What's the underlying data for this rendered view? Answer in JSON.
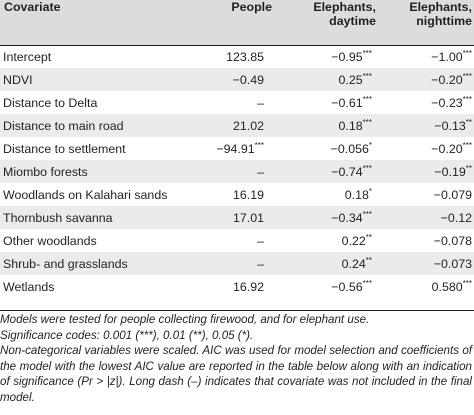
{
  "header": {
    "covariate": "Covariate",
    "people": "People",
    "elephants_day_l1": "Elephants,",
    "elephants_day_l2": "daytime",
    "elephants_night_l1": "Elephants,",
    "elephants_night_l2": "nighttime"
  },
  "rows": [
    {
      "label": "Intercept",
      "people": "123.85",
      "people_sig": "",
      "day": "−0.95",
      "day_sig": "***",
      "night": "−1.00",
      "night_sig": "***"
    },
    {
      "label": "NDVI",
      "people": "−0.49",
      "people_sig": "",
      "day": "0.25",
      "day_sig": "***",
      "night": "−0.20",
      "night_sig": "***"
    },
    {
      "label": "Distance to Delta",
      "people": "–",
      "people_sig": "",
      "day": "−0.61",
      "day_sig": "***",
      "night": "−0.23",
      "night_sig": "***"
    },
    {
      "label": "Distance to main road",
      "people": "21.02",
      "people_sig": "",
      "day": "0.18",
      "day_sig": "***",
      "night": "−0.13",
      "night_sig": "**"
    },
    {
      "label": "Distance to settlement",
      "people": "−94.91",
      "people_sig": "***",
      "day": "−0.056",
      "day_sig": "*",
      "night": "−0.20",
      "night_sig": "***"
    },
    {
      "label": "Miombo forests",
      "people": "–",
      "people_sig": "",
      "day": "−0.74",
      "day_sig": "***",
      "night": "−0.19",
      "night_sig": "**"
    },
    {
      "label": "Woodlands on Kalahari sands",
      "people": "16.19",
      "people_sig": "",
      "day": "0.18",
      "day_sig": "*",
      "night": "−0.079",
      "night_sig": ""
    },
    {
      "label": "Thornbush savanna",
      "people": "17.01",
      "people_sig": "",
      "day": "−0.34",
      "day_sig": "***",
      "night": "−0.12",
      "night_sig": ""
    },
    {
      "label": "Other woodlands",
      "people": "–",
      "people_sig": "",
      "day": "0.22",
      "day_sig": "**",
      "night": "−0.078",
      "night_sig": ""
    },
    {
      "label": "Shrub- and grasslands",
      "people": "–",
      "people_sig": "",
      "day": "0.24",
      "day_sig": "**",
      "night": "−0.073",
      "night_sig": ""
    },
    {
      "label": "Wetlands",
      "people": "16.92",
      "people_sig": "",
      "day": "−0.56",
      "day_sig": "***",
      "night": "0.580",
      "night_sig": "***"
    }
  ],
  "footnotes": {
    "line1": "Models were tested for people collecting firewood, and for elephant use.",
    "line2": "Significance codes: 0.001 (***), 0.01 (**), 0.05 (*).",
    "line3": "Non-categorical variables were scaled. AIC was used for model selection and coefficients of the model with the lowest AIC value are reported in the table below along with an indication of significance (Pr > |z|). Long dash (–) indicates that covariate was not included in the final model."
  }
}
